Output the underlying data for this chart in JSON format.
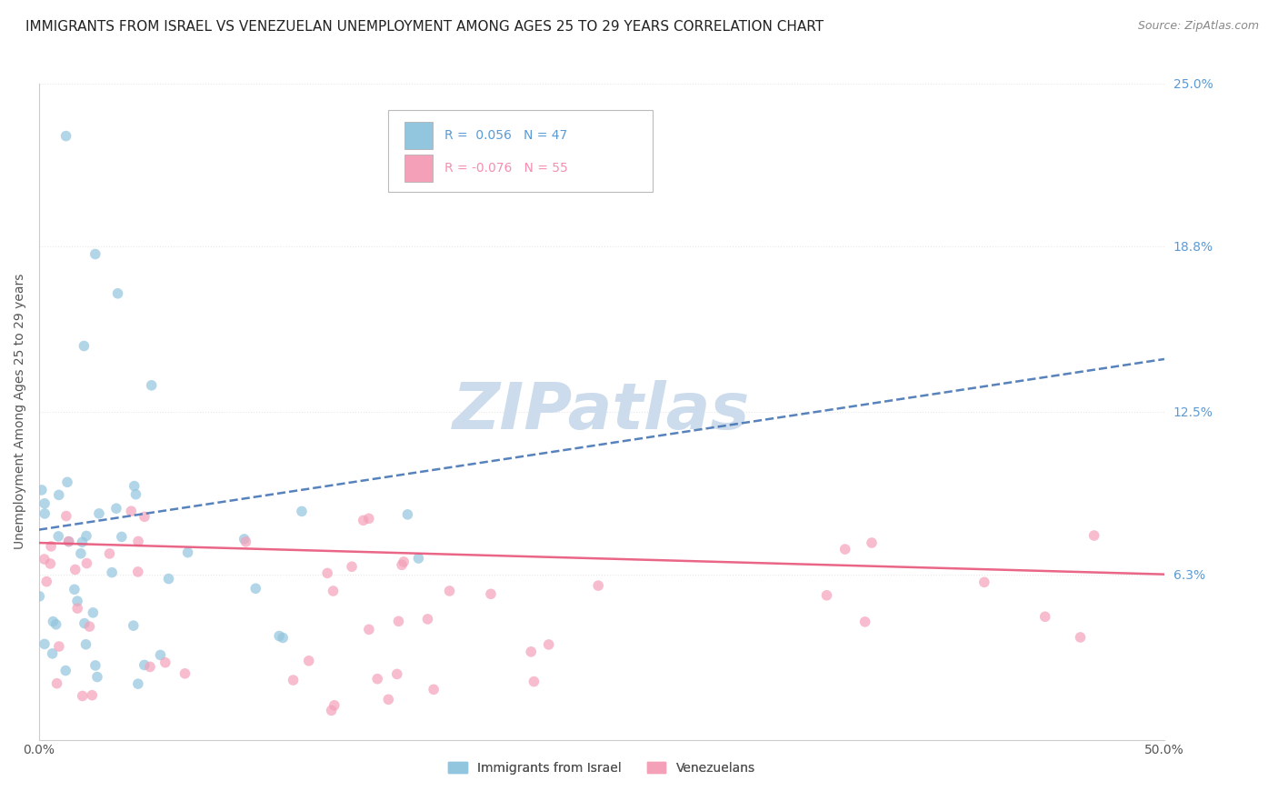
{
  "title": "IMMIGRANTS FROM ISRAEL VS VENEZUELAN UNEMPLOYMENT AMONG AGES 25 TO 29 YEARS CORRELATION CHART",
  "source": "Source: ZipAtlas.com",
  "ylabel": "Unemployment Among Ages 25 to 29 years",
  "right_yticks": [
    6.3,
    12.5,
    18.8,
    25.0
  ],
  "right_ytick_labels": [
    "6.3%",
    "12.5%",
    "18.8%",
    "25.0%"
  ],
  "legend_series": [
    "Immigrants from Israel",
    "Venezuelans"
  ],
  "series": [
    {
      "name": "Immigrants from Israel",
      "color": "#92c5de",
      "R": 0.056,
      "N": 47,
      "trend_style": "dashed",
      "trend_color": "#4575b4"
    },
    {
      "name": "Venezuelans",
      "color": "#f4a0b8",
      "R": -0.076,
      "N": 55,
      "trend_style": "solid",
      "trend_color": "#e8557a"
    }
  ],
  "xmin": 0.0,
  "xmax": 50.0,
  "ymin": 0.0,
  "ymax": 25.0,
  "background_color": "#ffffff",
  "watermark_color": "#cddcec",
  "grid_color": "#e8e8e8",
  "title_fontsize": 11,
  "source_fontsize": 9,
  "israel_legend_color": "#5b9bd5",
  "venezuela_legend_color": "#f48fb1"
}
